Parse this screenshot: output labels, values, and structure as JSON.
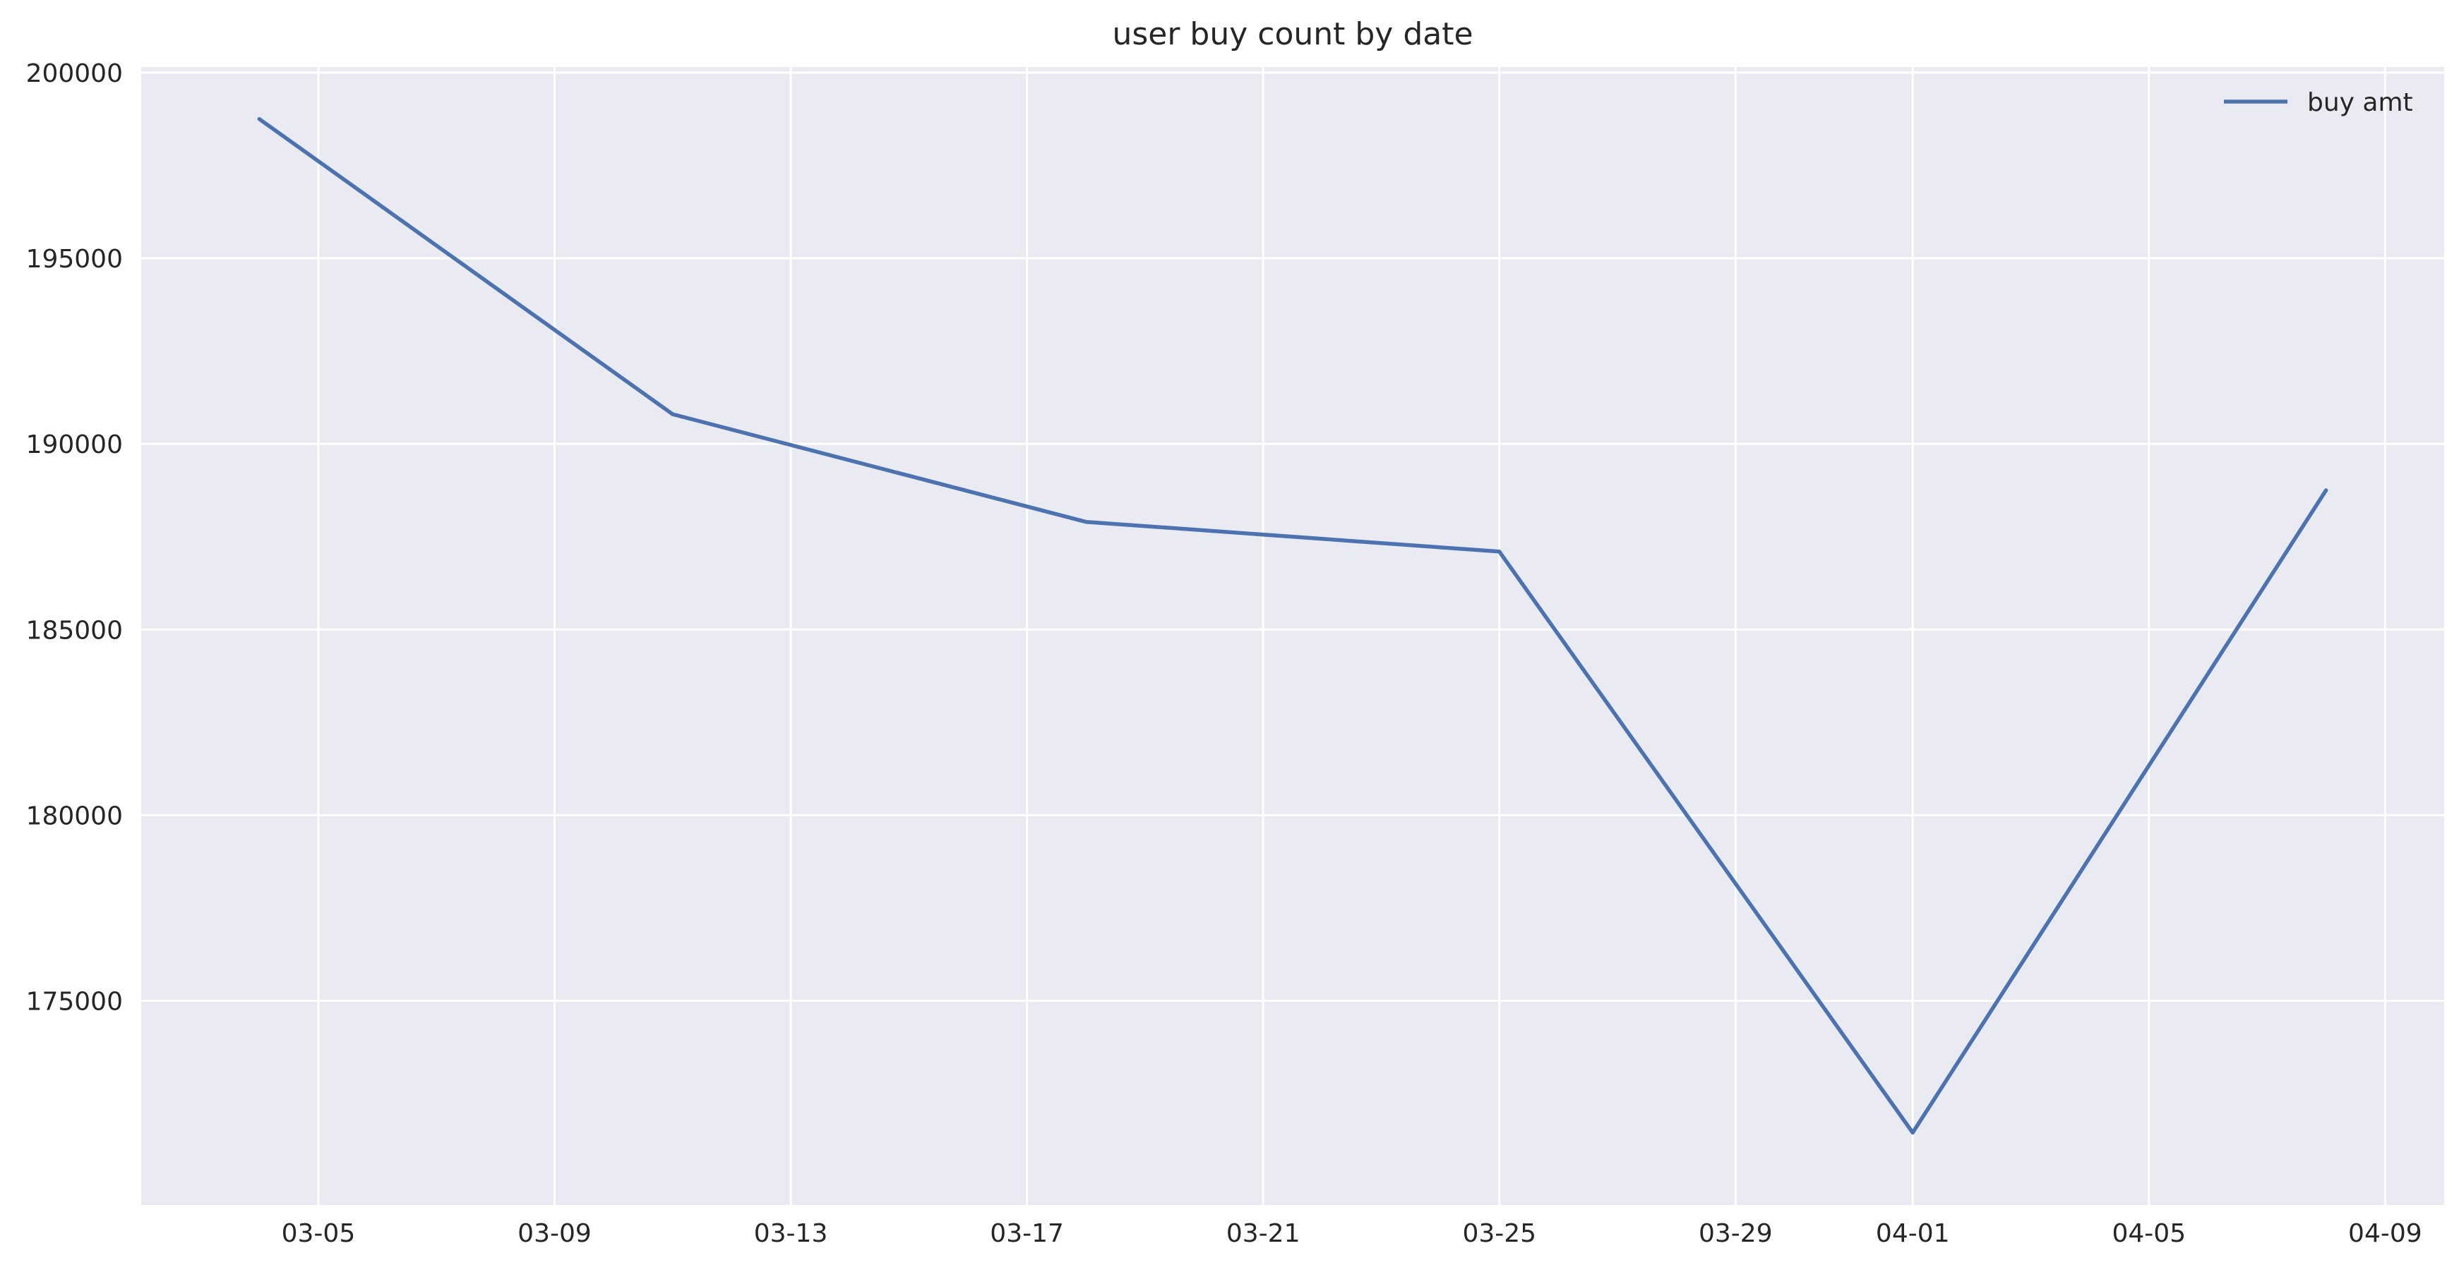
{
  "chart_data": {
    "type": "line",
    "title": "user buy count by date",
    "xlabel": "",
    "ylabel": "",
    "x": [
      "2018-03-04",
      "2018-03-11",
      "2018-03-18",
      "2018-03-25",
      "2018-04-01",
      "2018-04-08"
    ],
    "series": [
      {
        "name": "buy amt",
        "color": "#4c72b0",
        "values": [
          198750,
          190800,
          187900,
          187100,
          171450,
          188750
        ]
      }
    ],
    "xlim": [
      "2018-03-02",
      "2018-04-10"
    ],
    "ylim": [
      169500,
      200150
    ],
    "x_ticks": [
      {
        "date": "2018-03-05",
        "label": "03-05"
      },
      {
        "date": "2018-03-09",
        "label": "03-09"
      },
      {
        "date": "2018-03-13",
        "label": "03-13"
      },
      {
        "date": "2018-03-17",
        "label": "03-17"
      },
      {
        "date": "2018-03-21",
        "label": "03-21"
      },
      {
        "date": "2018-03-25",
        "label": "03-25"
      },
      {
        "date": "2018-03-29",
        "label": "03-29"
      },
      {
        "date": "2018-04-01",
        "label": "04-01"
      },
      {
        "date": "2018-04-05",
        "label": "04-05"
      },
      {
        "date": "2018-04-09",
        "label": "04-09"
      }
    ],
    "y_ticks": [
      {
        "value": 175000,
        "label": "175000"
      },
      {
        "value": 180000,
        "label": "180000"
      },
      {
        "value": 185000,
        "label": "185000"
      },
      {
        "value": 190000,
        "label": "190000"
      },
      {
        "value": 195000,
        "label": "195000"
      },
      {
        "value": 200000,
        "label": "200000"
      }
    ],
    "grid": true,
    "legend_position": "top-right",
    "plot_background": "#eaeaf2",
    "grid_color": "#ffffff"
  }
}
